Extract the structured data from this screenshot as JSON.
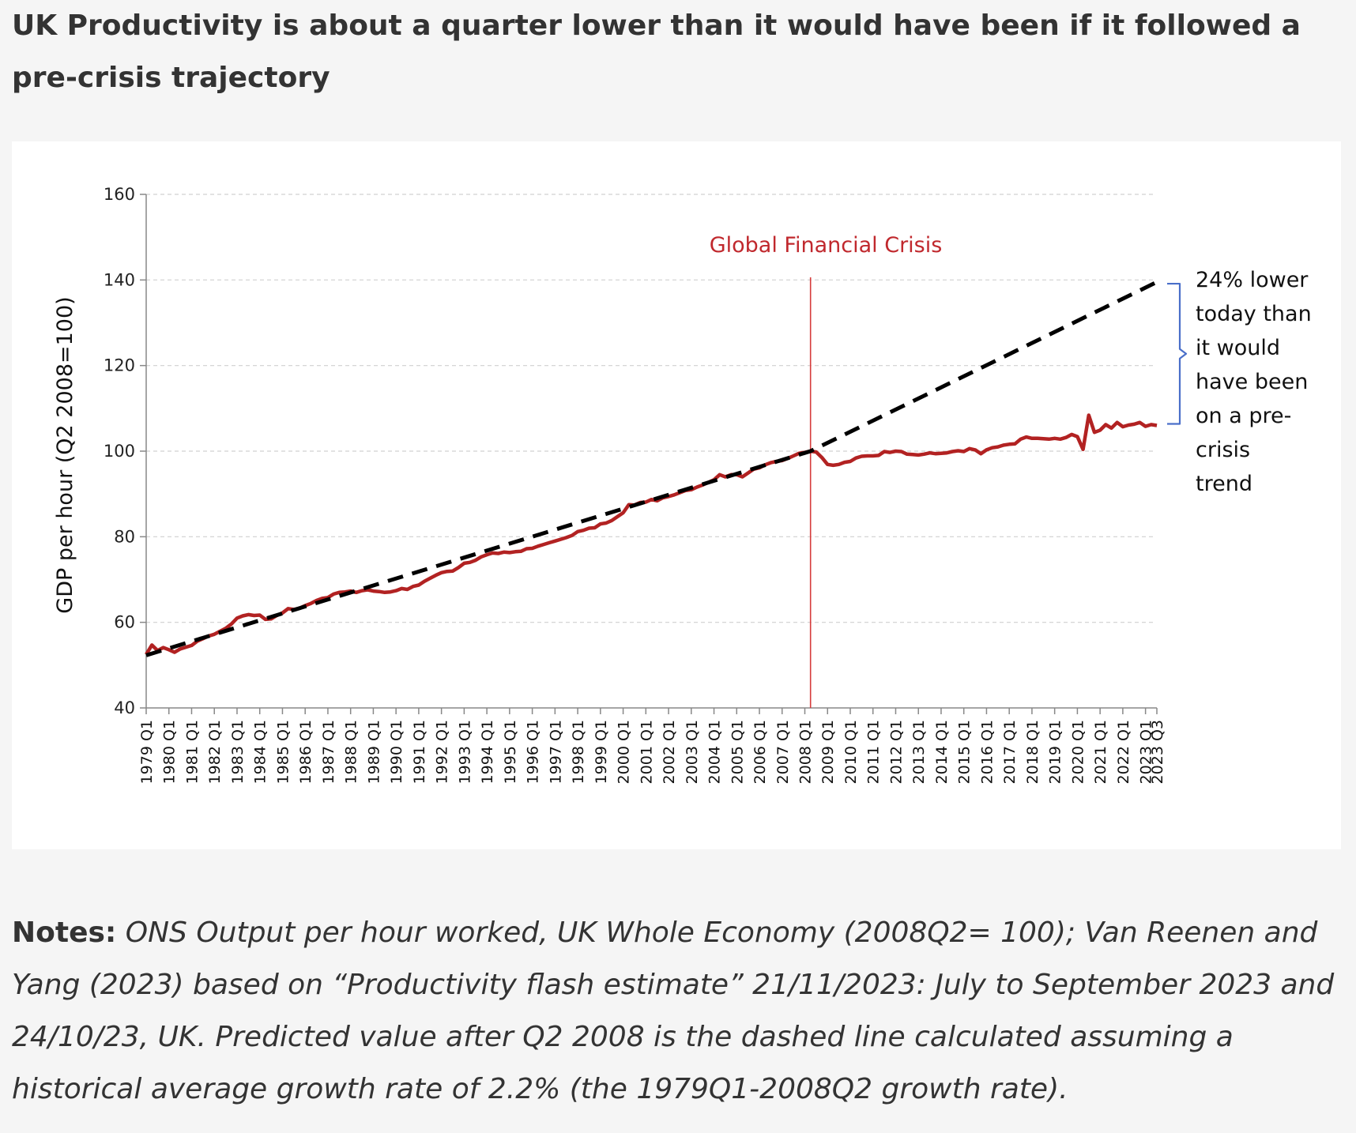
{
  "header": {
    "title": "UK Productivity is about a quarter lower than it would have been if it followed a pre-crisis trajectory"
  },
  "notes": {
    "label": "Notes:",
    "text": " ONS Output per hour worked, UK Whole Economy (2008Q2= 100); Van Reenen and Yang (2023) based on “Productivity flash estimate” 21/11/2023: July to September 2023 and 24/10/23, UK. Predicted value after Q2 2008 is the dashed line calculated assuming a historical average growth rate of 2.2% (the 1979Q1-2008Q2 growth rate)."
  },
  "chart_data": {
    "type": "line",
    "title": "",
    "xlabel": "",
    "ylabel": "GDP per hour (Q2 2008=100)",
    "ylim": [
      40,
      160
    ],
    "yticks": [
      40,
      60,
      80,
      100,
      120,
      140,
      160
    ],
    "grid": true,
    "legend": "none",
    "x_ticks": [
      "1979 Q1",
      "1980 Q1",
      "1981 Q1",
      "1982 Q1",
      "1983 Q1",
      "1984 Q1",
      "1985 Q1",
      "1986 Q1",
      "1987 Q1",
      "1988 Q1",
      "1989 Q1",
      "1990 Q1",
      "1991 Q1",
      "1992 Q1",
      "1993 Q1",
      "1994 Q1",
      "1995 Q1",
      "1996 Q1",
      "1997 Q1",
      "1998 Q1",
      "1999 Q1",
      "2000 Q1",
      "2001 Q1",
      "2002 Q1",
      "2003 Q1",
      "2004 Q1",
      "2005 Q1",
      "2006 Q1",
      "2007 Q1",
      "2008 Q1",
      "2009 Q1",
      "2010 Q1",
      "2011 Q1",
      "2012 Q1",
      "2013 Q1",
      "2014 Q1",
      "2015 Q1",
      "2016 Q1",
      "2017 Q1",
      "2018 Q1",
      "2019 Q1",
      "2020 Q1",
      "2021 Q1",
      "2022 Q1",
      "2023 Q1",
      "2023 Q3"
    ],
    "colors": {
      "actual": "#b22222",
      "trend": "#000000",
      "crisis_line": "#d63c3c",
      "crisis_label": "#c0282d",
      "bracket": "#4a6fc9",
      "grid": "#d0d0d0",
      "axis": "#888888"
    },
    "series": [
      {
        "key": "actual",
        "style": "solid",
        "points": [
          [
            "1979 Q1",
            52.5
          ],
          [
            "1979 Q2",
            54.7
          ],
          [
            "1979 Q3",
            53.4
          ],
          [
            "1979 Q4",
            54.1
          ],
          [
            "1980 Q1",
            53.6
          ],
          [
            "1980 Q2",
            53.0
          ],
          [
            "1980 Q3",
            53.8
          ],
          [
            "1980 Q4",
            54.2
          ],
          [
            "1981 Q1",
            54.6
          ],
          [
            "1981 Q2",
            55.6
          ],
          [
            "1981 Q3",
            56.2
          ],
          [
            "1981 Q4",
            56.8
          ],
          [
            "1982 Q1",
            57.2
          ],
          [
            "1982 Q2",
            57.9
          ],
          [
            "1982 Q3",
            58.6
          ],
          [
            "1982 Q4",
            59.6
          ],
          [
            "1983 Q1",
            61.0
          ],
          [
            "1983 Q2",
            61.5
          ],
          [
            "1983 Q3",
            61.8
          ],
          [
            "1983 Q4",
            61.6
          ],
          [
            "1984 Q1",
            61.7
          ],
          [
            "1984 Q2",
            60.7
          ],
          [
            "1984 Q3",
            60.8
          ],
          [
            "1984 Q4",
            61.6
          ],
          [
            "1985 Q1",
            62.2
          ],
          [
            "1985 Q2",
            63.2
          ],
          [
            "1985 Q3",
            63.0
          ],
          [
            "1985 Q4",
            63.3
          ],
          [
            "1986 Q1",
            63.9
          ],
          [
            "1986 Q2",
            64.4
          ],
          [
            "1986 Q3",
            65.1
          ],
          [
            "1986 Q4",
            65.6
          ],
          [
            "1987 Q1",
            65.8
          ],
          [
            "1987 Q2",
            66.6
          ],
          [
            "1987 Q3",
            67.0
          ],
          [
            "1987 Q4",
            67.1
          ],
          [
            "1988 Q1",
            67.3
          ],
          [
            "1988 Q2",
            67.0
          ],
          [
            "1988 Q3",
            67.4
          ],
          [
            "1988 Q4",
            67.6
          ],
          [
            "1989 Q1",
            67.3
          ],
          [
            "1989 Q2",
            67.2
          ],
          [
            "1989 Q3",
            67.0
          ],
          [
            "1989 Q4",
            67.1
          ],
          [
            "1990 Q1",
            67.4
          ],
          [
            "1990 Q2",
            67.9
          ],
          [
            "1990 Q3",
            67.7
          ],
          [
            "1990 Q4",
            68.4
          ],
          [
            "1991 Q1",
            68.7
          ],
          [
            "1991 Q2",
            69.6
          ],
          [
            "1991 Q3",
            70.3
          ],
          [
            "1991 Q4",
            71.0
          ],
          [
            "1992 Q1",
            71.6
          ],
          [
            "1992 Q2",
            71.9
          ],
          [
            "1992 Q3",
            72.0
          ],
          [
            "1992 Q4",
            72.8
          ],
          [
            "1993 Q1",
            73.8
          ],
          [
            "1993 Q2",
            74.0
          ],
          [
            "1993 Q3",
            74.5
          ],
          [
            "1993 Q4",
            75.3
          ],
          [
            "1994 Q1",
            75.8
          ],
          [
            "1994 Q2",
            76.2
          ],
          [
            "1994 Q3",
            76.1
          ],
          [
            "1994 Q4",
            76.4
          ],
          [
            "1995 Q1",
            76.3
          ],
          [
            "1995 Q2",
            76.5
          ],
          [
            "1995 Q3",
            76.6
          ],
          [
            "1995 Q4",
            77.2
          ],
          [
            "1996 Q1",
            77.3
          ],
          [
            "1996 Q2",
            77.8
          ],
          [
            "1996 Q3",
            78.2
          ],
          [
            "1996 Q4",
            78.6
          ],
          [
            "1997 Q1",
            79.0
          ],
          [
            "1997 Q2",
            79.4
          ],
          [
            "1997 Q3",
            79.8
          ],
          [
            "1997 Q4",
            80.3
          ],
          [
            "1998 Q1",
            81.2
          ],
          [
            "1998 Q2",
            81.5
          ],
          [
            "1998 Q3",
            82.0
          ],
          [
            "1998 Q4",
            82.1
          ],
          [
            "1999 Q1",
            83.0
          ],
          [
            "1999 Q2",
            83.2
          ],
          [
            "1999 Q3",
            83.8
          ],
          [
            "1999 Q4",
            84.7
          ],
          [
            "2000 Q1",
            85.6
          ],
          [
            "2000 Q2",
            87.5
          ],
          [
            "2000 Q3",
            87.4
          ],
          [
            "2000 Q4",
            88.0
          ],
          [
            "2001 Q1",
            88.1
          ],
          [
            "2001 Q2",
            88.7
          ],
          [
            "2001 Q3",
            88.4
          ],
          [
            "2001 Q4",
            89.1
          ],
          [
            "2002 Q1",
            89.4
          ],
          [
            "2002 Q2",
            89.8
          ],
          [
            "2002 Q3",
            90.3
          ],
          [
            "2002 Q4",
            90.8
          ],
          [
            "2003 Q1",
            91.0
          ],
          [
            "2003 Q2",
            91.6
          ],
          [
            "2003 Q3",
            92.1
          ],
          [
            "2003 Q4",
            92.7
          ],
          [
            "2004 Q1",
            93.3
          ],
          [
            "2004 Q2",
            94.5
          ],
          [
            "2004 Q3",
            94.0
          ],
          [
            "2004 Q4",
            94.5
          ],
          [
            "2005 Q1",
            94.5
          ],
          [
            "2005 Q2",
            94.0
          ],
          [
            "2005 Q3",
            94.9
          ],
          [
            "2005 Q4",
            95.8
          ],
          [
            "2006 Q1",
            96.1
          ],
          [
            "2006 Q2",
            96.8
          ],
          [
            "2006 Q3",
            97.3
          ],
          [
            "2006 Q4",
            97.6
          ],
          [
            "2007 Q1",
            97.8
          ],
          [
            "2007 Q2",
            98.3
          ],
          [
            "2007 Q3",
            98.9
          ],
          [
            "2007 Q4",
            99.5
          ],
          [
            "2008 Q1",
            99.7
          ],
          [
            "2008 Q2",
            100.0
          ],
          [
            "2008 Q3",
            99.8
          ],
          [
            "2008 Q4",
            98.5
          ],
          [
            "2009 Q1",
            96.9
          ],
          [
            "2009 Q2",
            96.7
          ],
          [
            "2009 Q3",
            96.9
          ],
          [
            "2009 Q4",
            97.4
          ],
          [
            "2010 Q1",
            97.6
          ],
          [
            "2010 Q2",
            98.4
          ],
          [
            "2010 Q3",
            98.8
          ],
          [
            "2010 Q4",
            98.9
          ],
          [
            "2011 Q1",
            98.9
          ],
          [
            "2011 Q2",
            99.0
          ],
          [
            "2011 Q3",
            99.9
          ],
          [
            "2011 Q4",
            99.7
          ],
          [
            "2012 Q1",
            100.0
          ],
          [
            "2012 Q2",
            99.9
          ],
          [
            "2012 Q3",
            99.3
          ],
          [
            "2012 Q4",
            99.2
          ],
          [
            "2013 Q1",
            99.1
          ],
          [
            "2013 Q2",
            99.3
          ],
          [
            "2013 Q3",
            99.6
          ],
          [
            "2013 Q4",
            99.4
          ],
          [
            "2014 Q1",
            99.5
          ],
          [
            "2014 Q2",
            99.6
          ],
          [
            "2014 Q3",
            99.9
          ],
          [
            "2014 Q4",
            100.1
          ],
          [
            "2015 Q1",
            99.9
          ],
          [
            "2015 Q2",
            100.6
          ],
          [
            "2015 Q3",
            100.3
          ],
          [
            "2015 Q4",
            99.4
          ],
          [
            "2016 Q1",
            100.3
          ],
          [
            "2016 Q2",
            100.8
          ],
          [
            "2016 Q3",
            101.0
          ],
          [
            "2016 Q4",
            101.4
          ],
          [
            "2017 Q1",
            101.6
          ],
          [
            "2017 Q2",
            101.7
          ],
          [
            "2017 Q3",
            102.8
          ],
          [
            "2017 Q4",
            103.3
          ],
          [
            "2018 Q1",
            103.0
          ],
          [
            "2018 Q2",
            103.0
          ],
          [
            "2018 Q3",
            102.9
          ],
          [
            "2018 Q4",
            102.8
          ],
          [
            "2019 Q1",
            103.0
          ],
          [
            "2019 Q2",
            102.8
          ],
          [
            "2019 Q3",
            103.2
          ],
          [
            "2019 Q4",
            103.9
          ],
          [
            "2020 Q1",
            103.4
          ],
          [
            "2020 Q2",
            100.4
          ],
          [
            "2020 Q3",
            108.4
          ],
          [
            "2020 Q4",
            104.4
          ],
          [
            "2021 Q1",
            104.9
          ],
          [
            "2021 Q2",
            106.2
          ],
          [
            "2021 Q3",
            105.4
          ],
          [
            "2021 Q4",
            106.7
          ],
          [
            "2022 Q1",
            105.7
          ],
          [
            "2022 Q2",
            106.1
          ],
          [
            "2022 Q3",
            106.3
          ],
          [
            "2022 Q4",
            106.7
          ],
          [
            "2023 Q1",
            105.8
          ],
          [
            "2023 Q2",
            106.2
          ],
          [
            "2023 Q3",
            106.0
          ]
        ]
      },
      {
        "key": "trend",
        "style": "dashed",
        "points": [
          [
            "1979 Q1",
            52.3
          ],
          [
            "2008 Q2",
            100.0
          ],
          [
            "2023 Q3",
            139.5
          ]
        ]
      }
    ],
    "annotations": {
      "crisis_x": "2008 Q2",
      "crisis_label": "Global Financial Crisis",
      "gap_bracket": [
        106.0,
        139.5
      ],
      "gap_lines": [
        "24% lower",
        "today than",
        "it would",
        "have been",
        "on a pre-",
        "crisis",
        "trend"
      ]
    }
  }
}
